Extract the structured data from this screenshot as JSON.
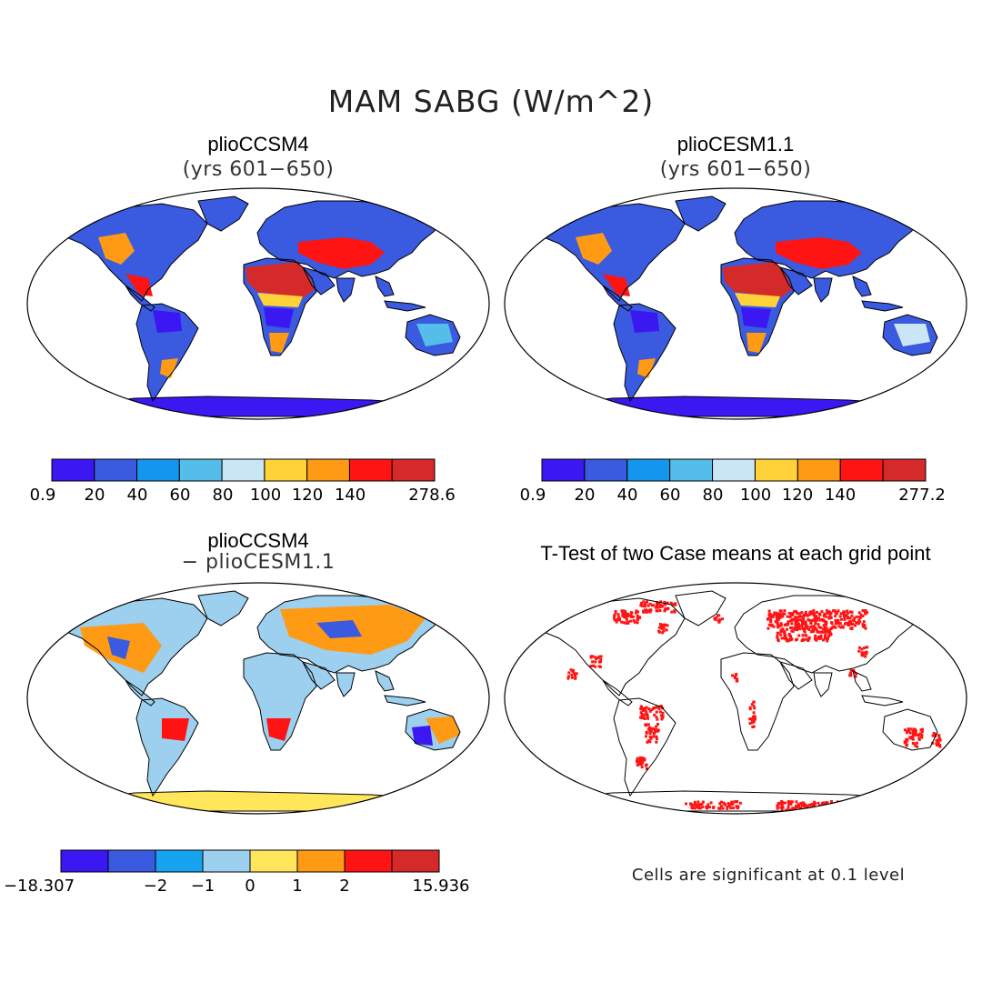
{
  "title": "MAM SABG (W/m^2)",
  "panels": {
    "p1": {
      "title": "plioCCSM4",
      "subtitle": "(yrs 601−650)"
    },
    "p2": {
      "title": "plioCESM1.1",
      "subtitle": "(yrs 601−650)"
    },
    "p3": {
      "title": "plioCCSM4",
      "subtitle": "− plioCESM1.1"
    },
    "p4": {
      "title": "T-Test of two Case means at each grid point",
      "note": "Cells are significant at 0.1 level"
    }
  },
  "colorbars": {
    "cb1": {
      "labels": [
        "0.9",
        "20",
        "40",
        "60",
        "80",
        "100",
        "120",
        "140",
        "278.6"
      ],
      "colors": [
        "#3b17f2",
        "#3a5ae0",
        "#1596ee",
        "#55bde9",
        "#cae6f4",
        "#ffd23a",
        "#ff9a14",
        "#ff1414",
        "#d42a2a"
      ]
    },
    "cb2": {
      "labels": [
        "0.9",
        "20",
        "40",
        "60",
        "80",
        "100",
        "120",
        "140",
        "277.2"
      ],
      "colors": [
        "#3b17f2",
        "#3a5ae0",
        "#1596ee",
        "#55bde9",
        "#cae6f4",
        "#ffd23a",
        "#ff9a14",
        "#ff1414",
        "#d42a2a"
      ]
    },
    "cb3": {
      "labels": [
        "−18.307",
        "−2",
        "−1",
        "0",
        "1",
        "2",
        "15.936"
      ],
      "colors": [
        "#3b17f2",
        "#3a5ae0",
        "#17a3f0",
        "#9dcfef",
        "#ffe65a",
        "#ff9a14",
        "#ff1414",
        "#d42a2a"
      ]
    }
  },
  "colors": {
    "land_high": "#d42a2a",
    "land_low": "#3b17f2",
    "significant": "#ff1414"
  }
}
